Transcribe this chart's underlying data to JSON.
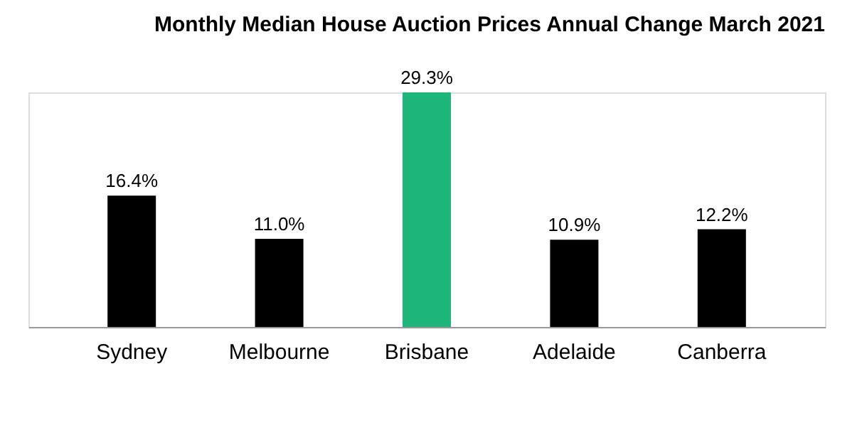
{
  "chart_data": {
    "type": "bar",
    "title": "Monthly Median House Auction Prices Annual Change March 2021",
    "categories": [
      "Sydney",
      "Melbourne",
      "Brisbane",
      "Adelaide",
      "Canberra"
    ],
    "values": [
      16.4,
      11.0,
      29.3,
      10.9,
      12.2
    ],
    "value_labels": [
      "16.4%",
      "11.0%",
      "29.3%",
      "10.9%",
      "12.2%"
    ],
    "colors": [
      "#000000",
      "#000000",
      "#1db77b",
      "#000000",
      "#000000"
    ],
    "grid": false
  }
}
